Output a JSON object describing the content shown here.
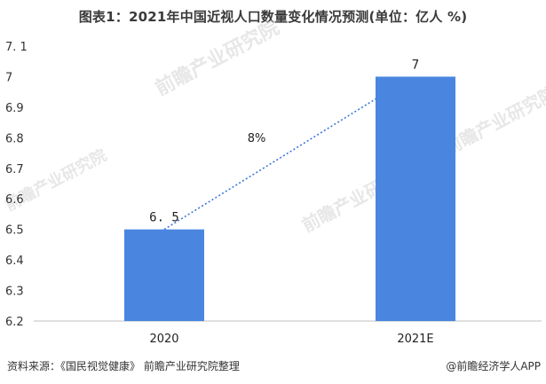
{
  "chart_data": {
    "type": "bar",
    "title": "图表1：2021年中国近视人口数量变化情况预测(单位：亿人 %)",
    "categories": [
      "2020",
      "2021E"
    ],
    "series": [
      {
        "values": [
          6.5,
          7
        ],
        "value_labels": [
          "6. 5",
          "7"
        ]
      }
    ],
    "ylim": [
      6.2,
      7.1
    ],
    "yticks": [
      6.2,
      6.3,
      6.4,
      6.5,
      6.6,
      6.7,
      6.8,
      6.9,
      7,
      7.1
    ],
    "ytick_labels": [
      "6.2",
      "6.3",
      "6.4",
      "6.5",
      "6.6",
      "6.7",
      "6.8",
      "6.9",
      "7",
      "7. 1"
    ],
    "growth_rate_label": "8%",
    "trendline": "dotted",
    "bar_color": "#4a86e0",
    "trend_color": "#3a78d6",
    "grid": false,
    "legend": "none"
  },
  "footer": {
    "source": "资料来源：《国民视觉健康》 前瞻产业研究院整理",
    "credit": "@前瞻经济学人APP"
  },
  "watermark": {
    "text": "前瞻产业研究院"
  }
}
